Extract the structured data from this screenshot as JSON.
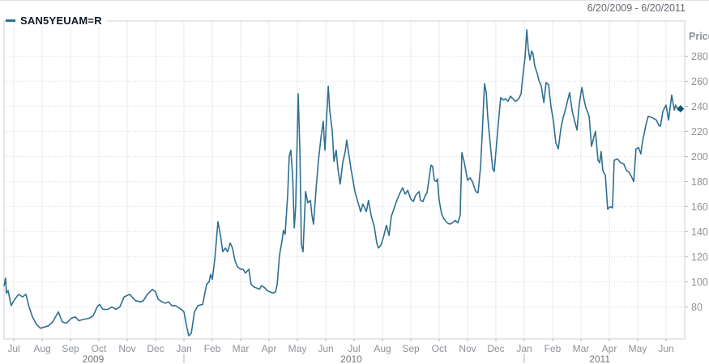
{
  "header": {
    "date_range": "6/20/2009 - 6/20/2011"
  },
  "legend": {
    "symbol": "SAN5YEUAM=R"
  },
  "axes": {
    "price_label": "Price",
    "price_ticks": [
      280,
      260,
      240,
      220,
      200,
      180,
      160,
      140,
      120,
      100,
      80
    ],
    "month_labels": [
      "Jul",
      "Aug",
      "Sep",
      "Oct",
      "Nov",
      "Dec",
      "Jan",
      "Feb",
      "Mar",
      "Apr",
      "May",
      "Jun",
      "Jul",
      "Aug",
      "Sep",
      "Oct",
      "Nov",
      "Dec",
      "Jan",
      "Feb",
      "Mar",
      "Apr",
      "May",
      "Jun"
    ],
    "year_labels": [
      {
        "text": "2009",
        "month_pos": 2.8
      },
      {
        "text": "2010",
        "month_pos": 11.9
      },
      {
        "text": "2011",
        "month_pos": 20.66
      }
    ],
    "year_separator_month_index": [
      6,
      18
    ]
  },
  "colors": {
    "line": "#2e6f91",
    "marker": "#14556f",
    "grid_h": "#d9dcdf",
    "grid_v": "#e8eaec",
    "frame": "#cccfd3",
    "tick": "#b0b4b8",
    "label": "#8d9298",
    "year_label": "#72777d"
  },
  "chart_data": {
    "type": "line",
    "title": "SAN5YEUAM=R",
    "x_unit": "months_since_2009-07-01",
    "x_range_dates": [
      "6/20/2009",
      "6/20/2011"
    ],
    "ylabel": "Price",
    "ylim": [
      54,
      308
    ],
    "y_ticks": [
      80,
      100,
      120,
      140,
      160,
      180,
      200,
      220,
      240,
      260,
      280
    ],
    "y_axis_side": "right",
    "grid": true,
    "legend_position": "top-left",
    "last_value": 238,
    "series": [
      {
        "name": "SAN5YEUAM=R",
        "points": [
          [
            -0.34,
            97
          ],
          [
            -0.29,
            103
          ],
          [
            -0.26,
            91
          ],
          [
            -0.2,
            93
          ],
          [
            -0.09,
            81
          ],
          [
            0.03,
            86
          ],
          [
            0.17,
            90
          ],
          [
            0.31,
            88
          ],
          [
            0.43,
            90
          ],
          [
            0.54,
            80
          ],
          [
            0.66,
            72
          ],
          [
            0.8,
            66
          ],
          [
            0.94,
            63
          ],
          [
            1.09,
            64
          ],
          [
            1.23,
            65
          ],
          [
            1.37,
            68
          ],
          [
            1.57,
            76
          ],
          [
            1.71,
            68
          ],
          [
            1.86,
            67
          ],
          [
            2.03,
            71
          ],
          [
            2.17,
            72
          ],
          [
            2.29,
            69
          ],
          [
            2.46,
            70
          ],
          [
            2.66,
            71
          ],
          [
            2.8,
            73
          ],
          [
            2.94,
            80
          ],
          [
            3.03,
            82
          ],
          [
            3.14,
            78
          ],
          [
            3.31,
            78
          ],
          [
            3.46,
            80
          ],
          [
            3.6,
            78
          ],
          [
            3.74,
            80
          ],
          [
            3.89,
            88
          ],
          [
            4.09,
            90
          ],
          [
            4.17,
            88
          ],
          [
            4.29,
            85
          ],
          [
            4.46,
            84
          ],
          [
            4.57,
            85
          ],
          [
            4.71,
            90
          ],
          [
            4.89,
            94
          ],
          [
            5.0,
            92
          ],
          [
            5.09,
            86
          ],
          [
            5.23,
            84
          ],
          [
            5.34,
            83
          ],
          [
            5.46,
            84
          ],
          [
            5.57,
            81
          ],
          [
            5.71,
            81
          ],
          [
            5.83,
            79
          ],
          [
            5.91,
            78
          ],
          [
            6.0,
            76
          ],
          [
            6.09,
            65
          ],
          [
            6.17,
            57
          ],
          [
            6.26,
            59
          ],
          [
            6.37,
            76
          ],
          [
            6.49,
            81
          ],
          [
            6.66,
            82
          ],
          [
            6.8,
            98
          ],
          [
            6.89,
            100
          ],
          [
            6.94,
            106
          ],
          [
            7.0,
            102
          ],
          [
            7.09,
            118
          ],
          [
            7.2,
            148
          ],
          [
            7.29,
            137
          ],
          [
            7.37,
            124
          ],
          [
            7.46,
            127
          ],
          [
            7.54,
            124
          ],
          [
            7.63,
            131
          ],
          [
            7.71,
            127
          ],
          [
            7.8,
            117
          ],
          [
            7.89,
            112
          ],
          [
            8.0,
            110
          ],
          [
            8.09,
            110
          ],
          [
            8.17,
            107
          ],
          [
            8.29,
            110
          ],
          [
            8.37,
            98
          ],
          [
            8.46,
            96
          ],
          [
            8.57,
            95
          ],
          [
            8.66,
            94
          ],
          [
            8.74,
            97
          ],
          [
            8.86,
            95
          ],
          [
            8.94,
            93
          ],
          [
            9.03,
            92
          ],
          [
            9.14,
            91
          ],
          [
            9.23,
            92
          ],
          [
            9.29,
            98
          ],
          [
            9.37,
            121
          ],
          [
            9.46,
            133
          ],
          [
            9.51,
            141
          ],
          [
            9.57,
            138
          ],
          [
            9.66,
            170
          ],
          [
            9.71,
            200
          ],
          [
            9.77,
            205
          ],
          [
            9.83,
            185
          ],
          [
            9.89,
            143
          ],
          [
            9.94,
            160
          ],
          [
            10.0,
            220
          ],
          [
            10.03,
            250
          ],
          [
            10.09,
            205
          ],
          [
            10.14,
            130
          ],
          [
            10.2,
            124
          ],
          [
            10.29,
            172
          ],
          [
            10.37,
            163
          ],
          [
            10.46,
            165
          ],
          [
            10.51,
            154
          ],
          [
            10.57,
            146
          ],
          [
            10.66,
            174
          ],
          [
            10.74,
            196
          ],
          [
            10.83,
            215
          ],
          [
            10.91,
            228
          ],
          [
            10.97,
            205
          ],
          [
            11.09,
            256
          ],
          [
            11.14,
            237
          ],
          [
            11.23,
            220
          ],
          [
            11.29,
            196
          ],
          [
            11.37,
            205
          ],
          [
            11.43,
            190
          ],
          [
            11.51,
            178
          ],
          [
            11.6,
            195
          ],
          [
            11.69,
            204
          ],
          [
            11.74,
            213
          ],
          [
            11.89,
            190
          ],
          [
            12.03,
            172
          ],
          [
            12.23,
            156
          ],
          [
            12.31,
            162
          ],
          [
            12.43,
            156
          ],
          [
            12.51,
            165
          ],
          [
            12.6,
            153
          ],
          [
            12.71,
            144
          ],
          [
            12.8,
            131
          ],
          [
            12.86,
            127
          ],
          [
            12.94,
            129
          ],
          [
            13.03,
            135
          ],
          [
            13.14,
            145
          ],
          [
            13.23,
            137
          ],
          [
            13.31,
            152
          ],
          [
            13.43,
            160
          ],
          [
            13.51,
            165
          ],
          [
            13.6,
            170
          ],
          [
            13.71,
            175
          ],
          [
            13.8,
            170
          ],
          [
            13.89,
            173
          ],
          [
            14.0,
            166
          ],
          [
            14.09,
            164
          ],
          [
            14.17,
            169
          ],
          [
            14.29,
            172
          ],
          [
            14.34,
            165
          ],
          [
            14.43,
            164
          ],
          [
            14.51,
            169
          ],
          [
            14.57,
            171
          ],
          [
            14.66,
            185
          ],
          [
            14.71,
            193
          ],
          [
            14.77,
            192
          ],
          [
            14.83,
            181
          ],
          [
            14.89,
            180
          ],
          [
            14.94,
            182
          ],
          [
            15.0,
            165
          ],
          [
            15.09,
            154
          ],
          [
            15.17,
            150
          ],
          [
            15.29,
            147
          ],
          [
            15.37,
            146
          ],
          [
            15.46,
            147
          ],
          [
            15.57,
            149
          ],
          [
            15.66,
            147
          ],
          [
            15.74,
            153
          ],
          [
            15.8,
            203
          ],
          [
            15.89,
            195
          ],
          [
            16.0,
            181
          ],
          [
            16.09,
            183
          ],
          [
            16.17,
            180
          ],
          [
            16.29,
            172
          ],
          [
            16.37,
            171
          ],
          [
            16.46,
            192
          ],
          [
            16.51,
            215
          ],
          [
            16.57,
            245
          ],
          [
            16.6,
            258
          ],
          [
            16.66,
            251
          ],
          [
            16.71,
            232
          ],
          [
            16.8,
            210
          ],
          [
            16.89,
            190
          ],
          [
            16.94,
            188
          ],
          [
            17.03,
            212
          ],
          [
            17.11,
            233
          ],
          [
            17.17,
            247
          ],
          [
            17.26,
            245
          ],
          [
            17.34,
            246
          ],
          [
            17.43,
            244
          ],
          [
            17.51,
            248
          ],
          [
            17.6,
            246
          ],
          [
            17.69,
            244
          ],
          [
            17.77,
            245
          ],
          [
            17.83,
            247
          ],
          [
            17.89,
            250
          ],
          [
            17.94,
            262
          ],
          [
            18.03,
            280
          ],
          [
            18.09,
            301
          ],
          [
            18.14,
            286
          ],
          [
            18.2,
            277
          ],
          [
            18.26,
            284
          ],
          [
            18.31,
            282
          ],
          [
            18.37,
            272
          ],
          [
            18.46,
            266
          ],
          [
            18.51,
            261
          ],
          [
            18.6,
            256
          ],
          [
            18.69,
            243
          ],
          [
            18.77,
            259
          ],
          [
            18.86,
            257
          ],
          [
            18.94,
            240
          ],
          [
            19.03,
            228
          ],
          [
            19.11,
            211
          ],
          [
            19.2,
            206
          ],
          [
            19.29,
            222
          ],
          [
            19.37,
            231
          ],
          [
            19.46,
            238
          ],
          [
            19.51,
            243
          ],
          [
            19.6,
            251
          ],
          [
            19.69,
            236
          ],
          [
            19.77,
            229
          ],
          [
            19.86,
            221
          ],
          [
            19.94,
            242
          ],
          [
            20.03,
            255
          ],
          [
            20.11,
            245
          ],
          [
            20.17,
            239
          ],
          [
            20.29,
            232
          ],
          [
            20.37,
            208
          ],
          [
            20.46,
            216
          ],
          [
            20.51,
            220
          ],
          [
            20.6,
            197
          ],
          [
            20.66,
            195
          ],
          [
            20.71,
            204
          ],
          [
            20.77,
            189
          ],
          [
            20.86,
            185
          ],
          [
            20.94,
            158
          ],
          [
            21.03,
            160
          ],
          [
            21.11,
            159
          ],
          [
            21.17,
            197
          ],
          [
            21.29,
            198
          ],
          [
            21.4,
            195
          ],
          [
            21.51,
            194
          ],
          [
            21.6,
            189
          ],
          [
            21.71,
            187
          ],
          [
            21.8,
            183
          ],
          [
            21.86,
            180
          ],
          [
            21.94,
            206
          ],
          [
            22.03,
            207
          ],
          [
            22.11,
            202
          ],
          [
            22.17,
            212
          ],
          [
            22.29,
            225
          ],
          [
            22.37,
            232
          ],
          [
            22.51,
            231
          ],
          [
            22.66,
            229
          ],
          [
            22.74,
            225
          ],
          [
            22.8,
            224
          ],
          [
            22.89,
            236
          ],
          [
            23.0,
            241
          ],
          [
            23.09,
            229
          ],
          [
            23.2,
            249
          ],
          [
            23.29,
            237
          ],
          [
            23.34,
            241
          ],
          [
            23.43,
            237
          ],
          [
            23.51,
            238
          ]
        ]
      }
    ]
  }
}
